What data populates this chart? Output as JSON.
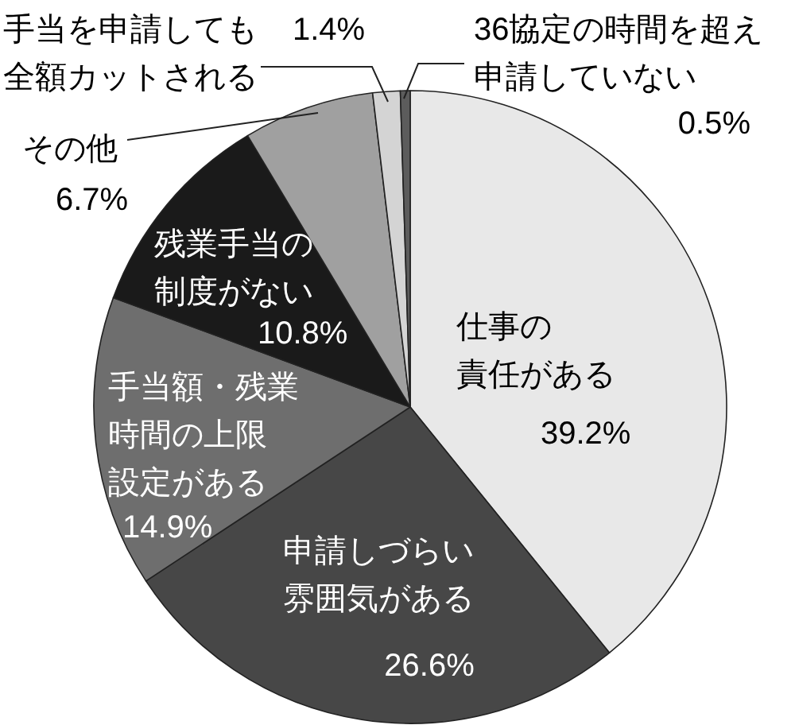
{
  "chart_data": {
    "type": "pie",
    "categories": [
      "仕事の責任がある",
      "申請しづらい雰囲気がある",
      "手当額・残業時間の上限設定がある",
      "残業手当の制度がない",
      "その他",
      "手当を申請しても全額カットされる",
      "36協定の時間を超え申請していない"
    ],
    "values": [
      39.2,
      26.6,
      14.9,
      10.8,
      6.7,
      1.4,
      0.5
    ],
    "value_labels": [
      "39.2%",
      "26.6%",
      "14.9%",
      "10.8%",
      "6.7%",
      "1.4%",
      "0.5%"
    ],
    "colors": [
      "#e8e8e8",
      "#474747",
      "#6e6e6e",
      "#1a1a1a",
      "#a0a0a0",
      "#d4d4d4",
      "#5c5c5c"
    ]
  }
}
